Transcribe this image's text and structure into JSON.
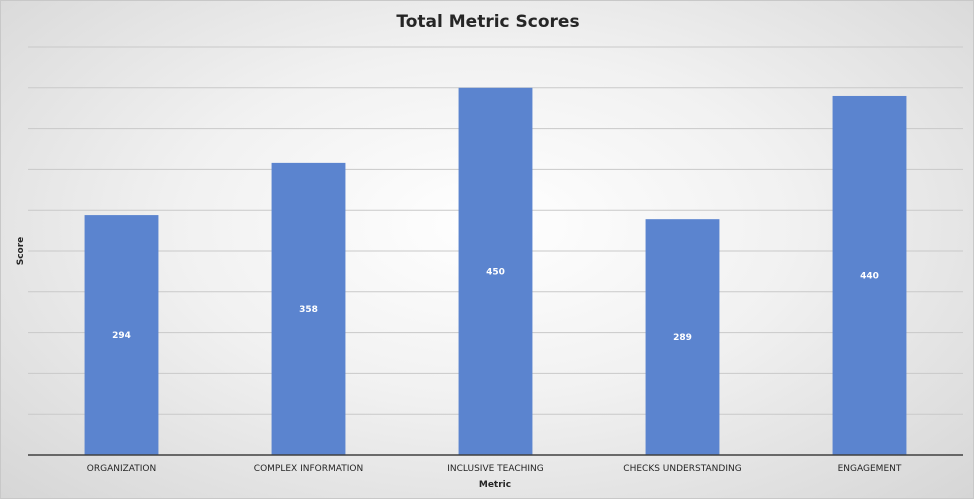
{
  "chart_data": {
    "type": "bar",
    "title": "Total Metric Scores",
    "xlabel": "Metric",
    "ylabel": "Score",
    "categories": [
      "ORGANIZATION",
      "COMPLEX INFORMATION",
      "INCLUSIVE TEACHING",
      "CHECKS UNDERSTANDING",
      "ENGAGEMENT"
    ],
    "values": [
      294,
      358,
      450,
      289,
      440
    ],
    "ylim": [
      0,
      450
    ],
    "gridlines": 9,
    "grid": true,
    "legend": "none",
    "bar_color": "#5b84cf"
  }
}
